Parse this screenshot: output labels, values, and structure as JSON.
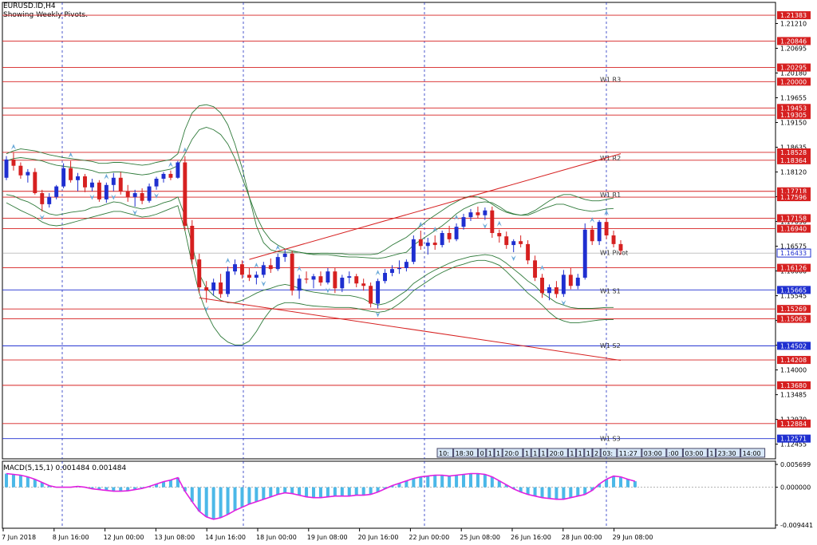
{
  "chart_data": {
    "type": "candlestick",
    "symbol_title": "EURUSD.ID,H4",
    "subtitle": "Showing Weekly Pivots.",
    "y_range": [
      1.1215,
      1.2165
    ],
    "price_ticks": [
      "1.21210",
      "1.20695",
      "1.20180",
      "1.19655",
      "1.19150",
      "1.18635",
      "1.18120",
      "1.17605",
      "1.17090",
      "1.16575",
      "1.16060",
      "1.15545",
      "1.15030",
      "1.14515",
      "1.14000",
      "1.13485",
      "1.12970",
      "1.12455"
    ],
    "horizontal_levels": [
      {
        "value": 1.21383,
        "label": "1.21383",
        "color": "#d62020"
      },
      {
        "value": 1.20846,
        "label": "1.20846",
        "color": "#d62020"
      },
      {
        "value": 1.20295,
        "label": "1.20295",
        "color": "#d62020"
      },
      {
        "value": 1.2,
        "label": "1.20000",
        "color": "#d62020"
      },
      {
        "value": 1.19453,
        "label": "1.19453",
        "color": "#d62020"
      },
      {
        "value": 1.19305,
        "label": "1.19305",
        "color": "#d62020"
      },
      {
        "value": 1.18528,
        "label": "1.18528",
        "color": "#d62020"
      },
      {
        "value": 1.18364,
        "label": "1.18364",
        "color": "#d62020"
      },
      {
        "value": 1.17718,
        "label": "1.17718",
        "color": "#d62020"
      },
      {
        "value": 1.17596,
        "label": "1.17596",
        "color": "#d62020"
      },
      {
        "value": 1.17158,
        "label": "1.17158",
        "color": "#d62020"
      },
      {
        "value": 1.1694,
        "label": "1.16940",
        "color": "#d62020"
      },
      {
        "value": 1.16126,
        "label": "1.16126",
        "color": "#d62020"
      },
      {
        "value": 1.15665,
        "label": "1.15665",
        "color": "#1f2fd0"
      },
      {
        "value": 1.15269,
        "label": "1.15269",
        "color": "#d62020"
      },
      {
        "value": 1.15063,
        "label": "1.15063",
        "color": "#d62020"
      },
      {
        "value": 1.14502,
        "label": "1.14502",
        "color": "#1f2fd0"
      },
      {
        "value": 1.14208,
        "label": "1.14208",
        "color": "#d62020"
      },
      {
        "value": 1.1368,
        "label": "1.13680",
        "color": "#d62020"
      },
      {
        "value": 1.12884,
        "label": "1.12884",
        "color": "#d62020"
      },
      {
        "value": 1.12571,
        "label": "1.12571",
        "color": "#1f2fd0"
      }
    ],
    "current_price": {
      "value": 1.16433,
      "label": "1.16433",
      "color": "#1f2fd0"
    },
    "pivot_labels": [
      {
        "text": "W1 R3",
        "value": 1.2
      },
      {
        "text": "W1 R2",
        "value": 1.1836
      },
      {
        "text": "W1 R1",
        "value": 1.176
      },
      {
        "text": "W1 Pivot",
        "value": 1.1639
      },
      {
        "text": "W1 S1",
        "value": 1.156
      },
      {
        "text": "W1 S2",
        "value": 1.1446
      },
      {
        "text": "W1 S3",
        "value": 1.1252
      }
    ],
    "x_labels": [
      "7 Jun 2018",
      "8 Jun 16:00",
      "12 Jun 00:00",
      "13 Jun 08:00",
      "14 Jun 16:00",
      "18 Jun 00:00",
      "19 Jun 08:00",
      "20 Jun 16:00",
      "22 Jun 00:00",
      "25 Jun 08:00",
      "26 Jun 16:00",
      "28 Jun 00:00",
      "29 Jun 08:00"
    ],
    "ohlc": [
      [
        1.18,
        1.1845,
        1.1795,
        1.1838
      ],
      [
        1.1838,
        1.1852,
        1.1815,
        1.1825
      ],
      [
        1.1825,
        1.1832,
        1.1798,
        1.1805
      ],
      [
        1.1805,
        1.1818,
        1.179,
        1.1812
      ],
      [
        1.1812,
        1.182,
        1.1765,
        1.1768
      ],
      [
        1.1768,
        1.1775,
        1.173,
        1.1745
      ],
      [
        1.1745,
        1.1768,
        1.1738,
        1.176
      ],
      [
        1.176,
        1.1785,
        1.1755,
        1.1782
      ],
      [
        1.1782,
        1.183,
        1.1778,
        1.182
      ],
      [
        1.182,
        1.1835,
        1.179,
        1.1795
      ],
      [
        1.1795,
        1.181,
        1.1772,
        1.1803
      ],
      [
        1.1803,
        1.1808,
        1.177,
        1.178
      ],
      [
        1.178,
        1.1798,
        1.1772,
        1.179
      ],
      [
        1.179,
        1.1795,
        1.175,
        1.1755
      ],
      [
        1.1755,
        1.179,
        1.1748,
        1.1785
      ],
      [
        1.1785,
        1.181,
        1.1772,
        1.18
      ],
      [
        1.18,
        1.1812,
        1.1765,
        1.1772
      ],
      [
        1.1772,
        1.1785,
        1.175,
        1.176
      ],
      [
        1.176,
        1.1775,
        1.174,
        1.1768
      ],
      [
        1.1768,
        1.1778,
        1.1745,
        1.1752
      ],
      [
        1.1752,
        1.1788,
        1.1748,
        1.1782
      ],
      [
        1.1782,
        1.1802,
        1.1775,
        1.1798
      ],
      [
        1.1798,
        1.1812,
        1.179,
        1.1808
      ],
      [
        1.1808,
        1.1815,
        1.1795,
        1.18
      ],
      [
        1.18,
        1.1835,
        1.1798,
        1.1832
      ],
      [
        1.1832,
        1.1845,
        1.169,
        1.17
      ],
      [
        1.17,
        1.1712,
        1.162,
        1.163
      ],
      [
        1.163,
        1.1642,
        1.156,
        1.1572
      ],
      [
        1.1572,
        1.1585,
        1.154,
        1.1565
      ],
      [
        1.1565,
        1.159,
        1.1555,
        1.1582
      ],
      [
        1.1582,
        1.16,
        1.155,
        1.1558
      ],
      [
        1.1558,
        1.1615,
        1.1552,
        1.1605
      ],
      [
        1.1605,
        1.163,
        1.1598,
        1.162
      ],
      [
        1.162,
        1.1628,
        1.159,
        1.1598
      ],
      [
        1.1598,
        1.1612,
        1.1585,
        1.1592
      ],
      [
        1.1592,
        1.1605,
        1.1578,
        1.1598
      ],
      [
        1.1598,
        1.1625,
        1.1592,
        1.1618
      ],
      [
        1.1618,
        1.1632,
        1.1602,
        1.161
      ],
      [
        1.161,
        1.1642,
        1.1606,
        1.1635
      ],
      [
        1.1635,
        1.165,
        1.1625,
        1.1642
      ],
      [
        1.1642,
        1.1648,
        1.1555,
        1.1565
      ],
      [
        1.1565,
        1.1598,
        1.1548,
        1.159
      ],
      [
        1.159,
        1.1605,
        1.158,
        1.1588
      ],
      [
        1.1588,
        1.16,
        1.157,
        1.1595
      ],
      [
        1.1595,
        1.1605,
        1.1575,
        1.1582
      ],
      [
        1.1582,
        1.1612,
        1.1578,
        1.1605
      ],
      [
        1.1605,
        1.1612,
        1.156,
        1.157
      ],
      [
        1.157,
        1.1598,
        1.1562,
        1.1592
      ],
      [
        1.1592,
        1.1605,
        1.158,
        1.1595
      ],
      [
        1.1595,
        1.16,
        1.1572,
        1.158
      ],
      [
        1.158,
        1.159,
        1.1565,
        1.1575
      ],
      [
        1.1575,
        1.1582,
        1.153,
        1.1538
      ],
      [
        1.1538,
        1.159,
        1.1528,
        1.1585
      ],
      [
        1.1585,
        1.161,
        1.158,
        1.1602
      ],
      [
        1.1602,
        1.1618,
        1.1595,
        1.161
      ],
      [
        1.161,
        1.1628,
        1.16,
        1.1612
      ],
      [
        1.1612,
        1.163,
        1.1605,
        1.1625
      ],
      [
        1.1625,
        1.168,
        1.162,
        1.1672
      ],
      [
        1.1672,
        1.169,
        1.165,
        1.1658
      ],
      [
        1.1658,
        1.1675,
        1.164,
        1.1665
      ],
      [
        1.1665,
        1.168,
        1.165,
        1.166
      ],
      [
        1.166,
        1.169,
        1.1655,
        1.1685
      ],
      [
        1.1685,
        1.17,
        1.1665,
        1.1672
      ],
      [
        1.1672,
        1.1705,
        1.1668,
        1.1698
      ],
      [
        1.1698,
        1.1725,
        1.1692,
        1.1718
      ],
      [
        1.1718,
        1.1735,
        1.171,
        1.1728
      ],
      [
        1.1728,
        1.174,
        1.1715,
        1.1722
      ],
      [
        1.1722,
        1.1738,
        1.1712,
        1.1732
      ],
      [
        1.1732,
        1.174,
        1.1675,
        1.1685
      ],
      [
        1.1685,
        1.1692,
        1.1665,
        1.1678
      ],
      [
        1.1678,
        1.1688,
        1.1652,
        1.166
      ],
      [
        1.166,
        1.1672,
        1.1645,
        1.1668
      ],
      [
        1.1668,
        1.168,
        1.1655,
        1.1662
      ],
      [
        1.1662,
        1.167,
        1.162,
        1.1628
      ],
      [
        1.1628,
        1.1638,
        1.1585,
        1.1592
      ],
      [
        1.1592,
        1.16,
        1.155,
        1.156
      ],
      [
        1.156,
        1.1578,
        1.1545,
        1.1572
      ],
      [
        1.1572,
        1.1585,
        1.155,
        1.1558
      ],
      [
        1.1558,
        1.1608,
        1.1552,
        1.1598
      ],
      [
        1.1598,
        1.1612,
        1.1568,
        1.1575
      ],
      [
        1.1575,
        1.16,
        1.1568,
        1.1592
      ],
      [
        1.1592,
        1.1705,
        1.1588,
        1.1692
      ],
      [
        1.1692,
        1.17,
        1.166,
        1.1668
      ],
      [
        1.1668,
        1.1712,
        1.166,
        1.1708
      ],
      [
        1.1708,
        1.1715,
        1.1672,
        1.168
      ],
      [
        1.168,
        1.169,
        1.1655,
        1.1662
      ],
      [
        1.1662,
        1.167,
        1.164,
        1.1648
      ]
    ],
    "bollinger": {
      "inner_upper": [
        1.1835,
        1.184,
        1.1842,
        1.184,
        1.1838,
        1.1835,
        1.183,
        1.1826,
        1.1824,
        1.1822,
        1.182,
        1.1818,
        1.1815,
        1.181,
        1.181,
        1.1812,
        1.1812,
        1.181,
        1.1808,
        1.1806,
        1.1808,
        1.1812,
        1.1815,
        1.1818,
        1.1825,
        1.185,
        1.188,
        1.19,
        1.1905,
        1.19,
        1.189,
        1.187,
        1.184,
        1.18,
        1.176,
        1.172,
        1.169,
        1.167,
        1.166,
        1.1652,
        1.1648,
        1.1645,
        1.1642,
        1.164,
        1.164,
        1.164,
        1.1638,
        1.1636,
        1.1635,
        1.1635,
        1.1634,
        1.1633,
        1.1632,
        1.1634,
        1.1638,
        1.1642,
        1.1645,
        1.166,
        1.167,
        1.168,
        1.169,
        1.17,
        1.1712,
        1.1725,
        1.1735,
        1.1742,
        1.1748,
        1.175,
        1.1748,
        1.174,
        1.173,
        1.1725,
        1.1722,
        1.1722,
        1.1728,
        1.1735,
        1.174,
        1.1745,
        1.1745,
        1.174,
        1.1735,
        1.1732,
        1.173,
        1.1732,
        1.1735,
        1.1736
      ],
      "inner_lower": [
        1.1765,
        1.1762,
        1.1755,
        1.175,
        1.1742,
        1.1732,
        1.1725,
        1.1722,
        1.1725,
        1.1728,
        1.173,
        1.1732,
        1.1738,
        1.174,
        1.1745,
        1.175,
        1.1748,
        1.1742,
        1.1738,
        1.1735,
        1.1738,
        1.1742,
        1.1748,
        1.1752,
        1.176,
        1.172,
        1.166,
        1.16,
        1.157,
        1.1555,
        1.1545,
        1.154,
        1.154,
        1.1545,
        1.1552,
        1.156,
        1.1566,
        1.157,
        1.1575,
        1.1578,
        1.1575,
        1.157,
        1.1565,
        1.1562,
        1.156,
        1.1558,
        1.1556,
        1.1555,
        1.1555,
        1.1552,
        1.1548,
        1.154,
        1.1535,
        1.1538,
        1.1545,
        1.1555,
        1.1565,
        1.158,
        1.159,
        1.16,
        1.1608,
        1.1615,
        1.1622,
        1.1628,
        1.1632,
        1.1636,
        1.1638,
        1.164,
        1.1638,
        1.1632,
        1.1622,
        1.161,
        1.1598,
        1.1585,
        1.1575,
        1.156,
        1.155,
        1.154,
        1.1535,
        1.153,
        1.1528,
        1.1528,
        1.1528,
        1.1529,
        1.153,
        1.153
      ],
      "outer_upper": [
        1.185,
        1.1856,
        1.186,
        1.1858,
        1.1856,
        1.1852,
        1.1848,
        1.1845,
        1.1842,
        1.184,
        1.1838,
        1.1836,
        1.1834,
        1.183,
        1.183,
        1.1832,
        1.1832,
        1.183,
        1.1828,
        1.1826,
        1.1828,
        1.1832,
        1.1835,
        1.1838,
        1.185,
        1.19,
        1.1935,
        1.195,
        1.1952,
        1.1948,
        1.1935,
        1.191,
        1.187,
        1.182,
        1.176,
        1.17,
        1.1665,
        1.165,
        1.1646,
        1.1645,
        1.1645,
        1.1645,
        1.1643,
        1.1642,
        1.1643,
        1.1643,
        1.1642,
        1.1642,
        1.164,
        1.164,
        1.164,
        1.164,
        1.1642,
        1.165,
        1.166,
        1.1668,
        1.1676,
        1.1688,
        1.17,
        1.1712,
        1.1722,
        1.1732,
        1.1742,
        1.175,
        1.1758,
        1.1762,
        1.176,
        1.1755,
        1.1745,
        1.1735,
        1.1728,
        1.1724,
        1.1722,
        1.1725,
        1.1732,
        1.1742,
        1.1752,
        1.176,
        1.1765,
        1.1765,
        1.176,
        1.1755,
        1.1752,
        1.1752,
        1.1755,
        1.1758
      ],
      "outer_lower": [
        1.1748,
        1.174,
        1.1732,
        1.1725,
        1.1718,
        1.1708,
        1.1702,
        1.17,
        1.1702,
        1.1706,
        1.171,
        1.1714,
        1.1718,
        1.1722,
        1.1726,
        1.173,
        1.173,
        1.1726,
        1.1722,
        1.1718,
        1.172,
        1.1724,
        1.173,
        1.1736,
        1.1742,
        1.169,
        1.162,
        1.156,
        1.152,
        1.149,
        1.147,
        1.1458,
        1.1452,
        1.1452,
        1.146,
        1.148,
        1.1505,
        1.1525,
        1.1535,
        1.154,
        1.154,
        1.1538,
        1.1535,
        1.1533,
        1.1532,
        1.1531,
        1.153,
        1.153,
        1.153,
        1.1528,
        1.1525,
        1.1522,
        1.152,
        1.1522,
        1.1528,
        1.1538,
        1.155,
        1.1565,
        1.1575,
        1.1585,
        1.1595,
        1.1603,
        1.161,
        1.1616,
        1.162,
        1.1625,
        1.1628,
        1.1628,
        1.1624,
        1.1618,
        1.1605,
        1.159,
        1.1575,
        1.156,
        1.1548,
        1.1535,
        1.152,
        1.1508,
        1.1502,
        1.1498,
        1.1498,
        1.15,
        1.1502,
        1.1504,
        1.1505,
        1.1505
      ]
    },
    "trendlines": [
      {
        "from": [
          34,
          1.163
        ],
        "to": [
          86,
          1.185
        ]
      },
      {
        "from": [
          27,
          1.155
        ],
        "to": [
          86,
          1.142
        ]
      }
    ],
    "fractals_up_idx": [
      1,
      9,
      14,
      23,
      25,
      31,
      35,
      38,
      41,
      52,
      58,
      60,
      63,
      69,
      75,
      82,
      84
    ],
    "fractals_down_idx": [
      5,
      12,
      15,
      18,
      21,
      28,
      36,
      45,
      52,
      67,
      71,
      78
    ],
    "macd_indicator": {
      "label": "MACD(5,15,1) 0.001484 0.001484",
      "y_range": [
        -0.009441,
        0.005699
      ],
      "ticks": [
        "0.005699",
        "0.000000",
        "-0.009441"
      ],
      "histogram": [
        0.0034,
        0.0032,
        0.003,
        0.0026,
        0.002,
        0.0012,
        0.0004,
        0.0,
        0.0,
        0.0,
        0.0002,
        0.0,
        -0.0004,
        -0.0006,
        -0.0008,
        -0.001,
        -0.001,
        -0.0009,
        -0.0006,
        -0.0003,
        0.0002,
        0.0008,
        0.0014,
        0.0018,
        0.0024,
        -0.001,
        -0.0036,
        -0.006,
        -0.0074,
        -0.008,
        -0.0076,
        -0.0068,
        -0.0058,
        -0.005,
        -0.0042,
        -0.0036,
        -0.003,
        -0.0024,
        -0.0018,
        -0.0014,
        -0.0016,
        -0.002,
        -0.0024,
        -0.0026,
        -0.0026,
        -0.0024,
        -0.0022,
        -0.0022,
        -0.0022,
        -0.002,
        -0.002,
        -0.0018,
        -0.0012,
        -0.0004,
        0.0004,
        0.001,
        0.0016,
        0.0022,
        0.0026,
        0.0028,
        0.003,
        0.003,
        0.0028,
        0.003,
        0.0032,
        0.0034,
        0.0034,
        0.0032,
        0.0026,
        0.0016,
        0.0006,
        -0.0004,
        -0.0012,
        -0.0018,
        -0.0022,
        -0.0026,
        -0.0028,
        -0.003,
        -0.003,
        -0.0026,
        -0.0022,
        -0.0018,
        -0.0008,
        0.0008,
        0.002,
        0.0028,
        0.0026,
        0.002,
        0.0015
      ]
    },
    "time_tags": [
      "10:",
      "18:30",
      "0",
      "1",
      "1",
      "20:0",
      "1",
      "1",
      "1",
      "20:0",
      "1",
      "1",
      "1",
      "2",
      "03:",
      "11:27",
      "03:00",
      ":00",
      "03:00",
      "1",
      "23:30",
      "14:00",
      "0",
      "1",
      "1",
      "21",
      "03",
      "1"
    ]
  },
  "colors": {
    "bull": "#1f2fd0",
    "bear": "#d62020",
    "band": "#2f7a3a",
    "vgrid": "#2030c0",
    "macd_line": "#e020e0",
    "macd_hist": "#4bb8e8",
    "fractal": "#6aa9d8"
  }
}
